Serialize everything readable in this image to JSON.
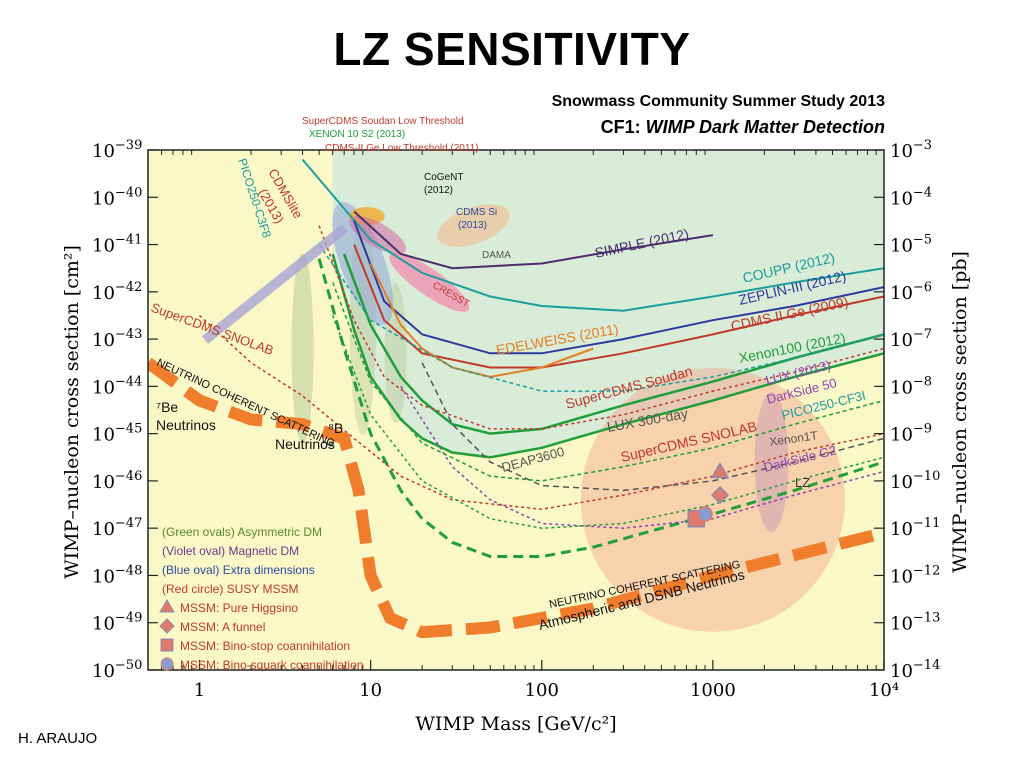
{
  "slide": {
    "title": "LZ SENSITIVITY",
    "subtitle_line1": "Snowmass Community Summer Study 2013",
    "subtitle_prefix": "CF1: ",
    "subtitle_emph": "WIMP Dark Matter Detection",
    "author": "H. ARAUJO"
  },
  "colors": {
    "background_plot": "#fbf8c8",
    "excluded_region": "#d9ecd7",
    "neutrino_band": "#ef7d2c",
    "lz_curve": "#1f9e3a"
  },
  "chart_data": {
    "type": "line",
    "xscale": "log",
    "yscale": "log",
    "xlabel": "WIMP Mass [GeV/c²]",
    "ylabel_left": "WIMP–nucleon cross section [cm²]",
    "ylabel_right": "WIMP–nucleon cross section [pb]",
    "xlim": [
      0.5,
      10000
    ],
    "ylim_cm2": [
      1e-50,
      1e-39
    ],
    "x_ticks": [
      {
        "value": 1,
        "label": "1"
      },
      {
        "value": 10,
        "label": "10"
      },
      {
        "value": 100,
        "label": "100"
      },
      {
        "value": 1000,
        "label": "1000"
      },
      {
        "value": 10000,
        "label": "10⁴"
      }
    ],
    "y_ticks_left": [
      {
        "value": -39,
        "base": "10",
        "exp": "−39"
      },
      {
        "value": -40,
        "base": "10",
        "exp": "−40"
      },
      {
        "value": -41,
        "base": "10",
        "exp": "−41"
      },
      {
        "value": -42,
        "base": "10",
        "exp": "−42"
      },
      {
        "value": -43,
        "base": "10",
        "exp": "−43"
      },
      {
        "value": -44,
        "base": "10",
        "exp": "−44"
      },
      {
        "value": -45,
        "base": "10",
        "exp": "−45"
      },
      {
        "value": -46,
        "base": "10",
        "exp": "−46"
      },
      {
        "value": -47,
        "base": "10",
        "exp": "−47"
      },
      {
        "value": -48,
        "base": "10",
        "exp": "−48"
      },
      {
        "value": -49,
        "base": "10",
        "exp": "−49"
      },
      {
        "value": -50,
        "base": "10",
        "exp": "−50"
      }
    ],
    "y_ticks_right": [
      {
        "value": -39,
        "base": "10",
        "exp": "−3"
      },
      {
        "value": -40,
        "base": "10",
        "exp": "−4"
      },
      {
        "value": -41,
        "base": "10",
        "exp": "−5"
      },
      {
        "value": -42,
        "base": "10",
        "exp": "−6"
      },
      {
        "value": -43,
        "base": "10",
        "exp": "−7"
      },
      {
        "value": -44,
        "base": "10",
        "exp": "−8"
      },
      {
        "value": -45,
        "base": "10",
        "exp": "−9"
      },
      {
        "value": -46,
        "base": "10",
        "exp": "−10"
      },
      {
        "value": -47,
        "base": "10",
        "exp": "−11"
      },
      {
        "value": -48,
        "base": "10",
        "exp": "−12"
      },
      {
        "value": -49,
        "base": "10",
        "exp": "−13"
      },
      {
        "value": -50,
        "base": "10",
        "exp": "−14"
      }
    ],
    "series": [
      {
        "name": "LZ",
        "color": "#1f9e3a",
        "dash": "10,6",
        "width": 3,
        "x": [
          5,
          7,
          10,
          15,
          20,
          30,
          50,
          100,
          200,
          500,
          1000,
          3000,
          10000
        ],
        "y": [
          -41.3,
          -43.2,
          -45,
          -46.2,
          -46.8,
          -47.3,
          -47.6,
          -47.6,
          -47.4,
          -47.0,
          -46.7,
          -46.2,
          -45.6
        ]
      },
      {
        "name": "Xenon100 (2012)",
        "color": "#1f9e3a",
        "dash": "",
        "width": 2.5,
        "x": [
          7,
          10,
          15,
          20,
          30,
          50,
          100,
          300,
          1000,
          3000,
          10000
        ],
        "y": [
          -41.2,
          -42.7,
          -43.8,
          -44.3,
          -44.8,
          -45.0,
          -44.9,
          -44.4,
          -43.9,
          -43.4,
          -42.9
        ]
      },
      {
        "name": "LUX (2013)",
        "color": "#1f9e3a",
        "dash": "",
        "width": 2.5,
        "x": [
          6,
          8,
          10,
          15,
          20,
          30,
          50,
          100,
          300,
          1000,
          3000,
          10000
        ],
        "y": [
          -41.2,
          -42.8,
          -43.8,
          -44.7,
          -45.1,
          -45.4,
          -45.5,
          -45.3,
          -44.8,
          -44.3,
          -43.8,
          -43.3
        ]
      },
      {
        "name": "COUPP (2012)",
        "color": "#1a9e9e",
        "dash": "",
        "width": 2,
        "x": [
          4,
          10,
          20,
          50,
          100,
          300,
          1000,
          3000,
          10000
        ],
        "y": [
          -39.2,
          -40.9,
          -41.6,
          -42.1,
          -42.3,
          -42.4,
          -42.1,
          -41.8,
          -41.5
        ]
      },
      {
        "name": "ZEPLIN-III (2012)",
        "color": "#2c3a9e",
        "dash": "",
        "width": 2,
        "x": [
          8,
          12,
          20,
          50,
          100,
          300,
          1000,
          3000,
          10000
        ],
        "y": [
          -40.5,
          -42.2,
          -42.9,
          -43.3,
          -43.3,
          -43.0,
          -42.6,
          -42.3,
          -41.9
        ]
      },
      {
        "name": "CDMS II Ge (2009)",
        "color": "#c0392b",
        "dash": "",
        "width": 2,
        "x": [
          8,
          12,
          20,
          50,
          100,
          300,
          1000,
          3000,
          10000
        ],
        "y": [
          -41.0,
          -42.6,
          -43.3,
          -43.6,
          -43.6,
          -43.3,
          -42.9,
          -42.5,
          -42.1
        ]
      },
      {
        "name": "EDELWEISS (2011)",
        "color": "#e67e22",
        "dash": "",
        "width": 2,
        "x": [
          10,
          15,
          20,
          30,
          50,
          100,
          200
        ],
        "y": [
          -41.4,
          -42.7,
          -43.2,
          -43.6,
          -43.8,
          -43.6,
          -43.2
        ]
      },
      {
        "name": "SIMPLE (2012)",
        "color": "#4b2d6e",
        "dash": "",
        "width": 2,
        "x": [
          8,
          15,
          30,
          100,
          300,
          1000
        ],
        "y": [
          -40.3,
          -41.2,
          -41.5,
          -41.4,
          -41.1,
          -40.8
        ]
      },
      {
        "name": "SuperCDMS Soudan",
        "color": "#c0392b",
        "dash": "3,3",
        "width": 1.5,
        "x": [
          5,
          8,
          12,
          20,
          50,
          100,
          300,
          1000,
          3000,
          10000
        ],
        "y": [
          -40.6,
          -42.6,
          -43.8,
          -44.4,
          -44.9,
          -44.9,
          -44.6,
          -44.1,
          -43.7,
          -43.2
        ]
      },
      {
        "name": "SuperCDMS SNOLAB",
        "color": "#c0392b",
        "dash": "3,3",
        "width": 1.5,
        "x": [
          1,
          2,
          4,
          8,
          15,
          30,
          100,
          300,
          1000,
          3000,
          10000
        ],
        "y": [
          -42.5,
          -43.5,
          -44.2,
          -45.1,
          -45.9,
          -46.4,
          -46.6,
          -46.3,
          -45.9,
          -45.4,
          -45.0
        ]
      },
      {
        "name": "DarkSide G2",
        "color": "#8e44ad",
        "dash": "3,3",
        "width": 1.5,
        "x": [
          15,
          30,
          50,
          100,
          300,
          1000,
          3000,
          10000
        ],
        "y": [
          -44.0,
          -45.7,
          -46.4,
          -46.9,
          -47.0,
          -46.8,
          -46.3,
          -45.8
        ]
      },
      {
        "name": "Xenon1T",
        "color": "#1f9e3a",
        "dash": "3,3",
        "width": 1.5,
        "x": [
          6,
          10,
          20,
          50,
          100,
          300,
          1000,
          3000,
          10000
        ],
        "y": [
          -42.5,
          -44.6,
          -46.0,
          -46.8,
          -47.0,
          -46.9,
          -46.5,
          -46.0,
          -45.5
        ]
      },
      {
        "name": "DEAP3600",
        "color": "#555555",
        "dash": "6,4",
        "width": 1.5,
        "x": [
          20,
          30,
          50,
          100,
          300,
          1000,
          3000,
          10000
        ],
        "y": [
          -43.5,
          -44.8,
          -45.6,
          -46.1,
          -46.2,
          -46.0,
          -45.6,
          -45.1
        ]
      },
      {
        "name": "LUX 300-day",
        "color": "#1f9e3a",
        "dash": "4,3",
        "width": 1.5,
        "x": [
          6,
          10,
          20,
          50,
          100,
          300,
          1000,
          3000,
          10000
        ],
        "y": [
          -41.8,
          -43.9,
          -45.2,
          -45.9,
          -46.0,
          -45.7,
          -45.3,
          -44.8,
          -44.3
        ]
      },
      {
        "name": "PICO250-CF3I",
        "color": "#1a9e9e",
        "dash": "4,3",
        "width": 1.5,
        "x": [
          5,
          10,
          30,
          100,
          300,
          1000,
          3000,
          10000
        ],
        "y": [
          -41.0,
          -42.6,
          -43.6,
          -44.1,
          -44.1,
          -43.8,
          -43.4,
          -42.9
        ]
      }
    ],
    "neutrino_band_points": [
      {
        "x": 0.5,
        "y": -43.5
      },
      {
        "x": 1,
        "y": -44.3
      },
      {
        "x": 2,
        "y": -44.7
      },
      {
        "x": 4,
        "y": -44.8
      },
      {
        "x": 7,
        "y": -45.1
      },
      {
        "x": 8.5,
        "y": -46.2
      },
      {
        "x": 10,
        "y": -48.0
      },
      {
        "x": 13,
        "y": -48.9
      },
      {
        "x": 20,
        "y": -49.2
      },
      {
        "x": 50,
        "y": -49.1
      },
      {
        "x": 200,
        "y": -48.7
      },
      {
        "x": 1000,
        "y": -48.0
      },
      {
        "x": 10000,
        "y": -47.1
      }
    ],
    "mssm_points": [
      {
        "kind": "Pure Higgsino",
        "shape": "triangle",
        "x": 1100,
        "y": -45.8
      },
      {
        "kind": "A funnel",
        "shape": "diamond",
        "x": 1100,
        "y": -46.3
      },
      {
        "kind": "Bino-stop coannihilation",
        "shape": "square",
        "x": 800,
        "y": -46.8
      },
      {
        "kind": "Bino-squark coannihilation",
        "shape": "star",
        "x": 900,
        "y": -46.7
      }
    ],
    "annotations": {
      "supercdms_low_threshold": "SuperCDMS Soudan Low Threshold",
      "xenon10_s2": "XENON 10 S2 (2013)",
      "cdms2_ge_low": "CDMS-II Ge Low Threshold (2011)",
      "cogent": "CoGeNT",
      "cogent_year": "(2012)",
      "cdms_si": "CDMS Si",
      "cdms_si_year": "(2013)",
      "dama": "DAMA",
      "cresst": "CRESST",
      "cdmslite": "CDMSlite",
      "cdmslite_year": "(2013)",
      "pico250_c3f8": "PICO250-C3F8",
      "simple": "SIMPLE (2012)",
      "coupp": "COUPP (2012)",
      "zeplin": "ZEPLIN-III (2012)",
      "cdms2ge": "CDMS II Ge  (2009)",
      "edelweiss": "EDELWEISS (2011)",
      "xenon100": "Xenon100 (2012)",
      "lux2013": "LUX (2013)",
      "darkside50": "DarkSide 50",
      "pico250_cf3i": "PICO250-CF3I",
      "supercdms_soudan": "SuperCDMS Soudan",
      "supercdms_snolab_left": "SuperCDMS SNOLAB",
      "supercdms_snolab_mid": "SuperCDMS SNOLAB",
      "lux300": "LUX 300-day",
      "xenon1t": "Xenon1T",
      "darkside_g2": "DarkSide G2",
      "deap3600": "DEAP3600",
      "lz": "LZ",
      "be7": "⁷Be",
      "neutrinos1": "Neutrinos",
      "b8": "⁸B",
      "neutrinos2": "Neutrinos",
      "ncs_upper": "NEUTRINO COHERENT SCATTERING",
      "ncs_lower": "NEUTRINO COHERENT SCATTERING",
      "atmospheric": "Atmospheric and DSNB Neutrinos"
    },
    "legend": [
      {
        "text": "(Green ovals) Asymmetric DM",
        "color": "#5a8a2a"
      },
      {
        "text": "(Violet oval) Magnetic DM",
        "color": "#6b3a8a"
      },
      {
        "text": "(Blue oval) Extra dimensions",
        "color": "#2c4a9e"
      },
      {
        "text": "(Red circle) SUSY MSSM",
        "color": "#c0392b"
      },
      {
        "text": "MSSM: Pure Higgsino",
        "color": "#c0392b",
        "marker": "triangle"
      },
      {
        "text": "MSSM: A funnel",
        "color": "#c0392b",
        "marker": "diamond"
      },
      {
        "text": "MSSM: Bino-stop coannihilation",
        "color": "#c0392b",
        "marker": "square"
      },
      {
        "text": "MSSM: Bino-squark coannihilation",
        "color": "#c0392b",
        "marker": "star"
      }
    ]
  }
}
